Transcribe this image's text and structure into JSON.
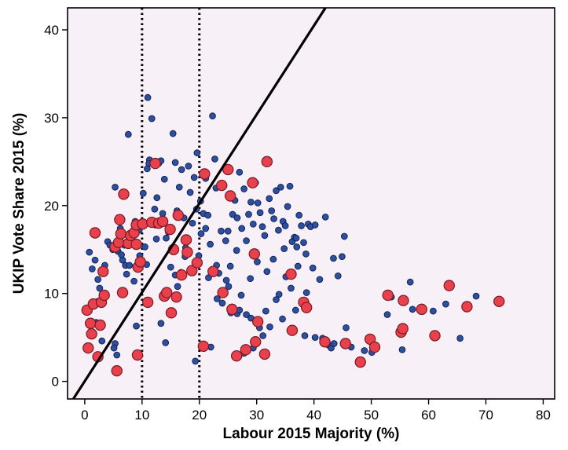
{
  "chart_data": {
    "type": "scatter",
    "xlabel": "Labour 2015 Majority (%)",
    "ylabel": "UKIP Vote Share 2015 (%)",
    "xlim": [
      -3,
      82
    ],
    "ylim": [
      -2,
      42.5
    ],
    "xticks": [
      "0",
      "10",
      "20",
      "30",
      "40",
      "50",
      "60",
      "70",
      "80"
    ],
    "yticks": [
      "0",
      "10",
      "20",
      "30",
      "40"
    ],
    "grid": false,
    "background_color": "#f7f0f7",
    "vertical_reference_lines": [
      10,
      20
    ],
    "trend_line": {
      "x1": -2,
      "y1": -2,
      "x2": 42,
      "y2": 42.5
    },
    "series": [
      {
        "color": "#2e4ea0",
        "marker": "small-circle",
        "points": [
          [
            0.8,
            14.7
          ],
          [
            1.3,
            12.8
          ],
          [
            1.8,
            13.8
          ],
          [
            2.3,
            11.6
          ],
          [
            2.6,
            10.6
          ],
          [
            2.3,
            9.1
          ],
          [
            3.5,
            13.2
          ],
          [
            4.0,
            15.9
          ],
          [
            4.4,
            15.5
          ],
          [
            4.9,
            15.0
          ],
          [
            5.3,
            22.1
          ],
          [
            5.8,
            14.8
          ],
          [
            6.2,
            17.4
          ],
          [
            6.4,
            14.4
          ],
          [
            6.9,
            15.5
          ],
          [
            7.1,
            13.2
          ],
          [
            7.6,
            28.1
          ],
          [
            7.8,
            13.2
          ],
          [
            8.2,
            16.3
          ],
          [
            8.4,
            16.9
          ],
          [
            8.8,
            18.2
          ],
          [
            9.2,
            15.8
          ],
          [
            9.5,
            17.2
          ],
          [
            5.3,
            4.3
          ],
          [
            5.1,
            3.8
          ],
          [
            5.6,
            3.0
          ],
          [
            9.0,
            6.3
          ],
          [
            10.2,
            21.4
          ],
          [
            10.8,
            13.3
          ],
          [
            10.5,
            15.3
          ],
          [
            11.0,
            32.3
          ],
          [
            10.9,
            24.2
          ],
          [
            11.3,
            25.2
          ],
          [
            11.7,
            29.9
          ],
          [
            12.2,
            19.6
          ],
          [
            12.5,
            16.2
          ],
          [
            12.9,
            24.8
          ],
          [
            13.3,
            25.1
          ],
          [
            13.6,
            19.1
          ],
          [
            13.9,
            23.0
          ],
          [
            14.2,
            16.3
          ],
          [
            14.6,
            17.0
          ],
          [
            15.0,
            13.0
          ],
          [
            15.4,
            28.2
          ],
          [
            15.8,
            12.1
          ],
          [
            16.1,
            19.4
          ],
          [
            16.5,
            22.1
          ],
          [
            16.9,
            24.1
          ],
          [
            17.3,
            18.6
          ],
          [
            17.6,
            15.2
          ],
          [
            18.0,
            16.2
          ],
          [
            18.4,
            21.5
          ],
          [
            18.8,
            18.0
          ],
          [
            19.1,
            23.2
          ],
          [
            19.5,
            19.6
          ],
          [
            19.9,
            14.3
          ],
          [
            20.3,
            16.8
          ],
          [
            20.7,
            19.1
          ],
          [
            21.1,
            17.4
          ],
          [
            21.5,
            18.9
          ],
          [
            21.9,
            15.6
          ],
          [
            22.3,
            30.2
          ],
          [
            22.7,
            25.3
          ],
          [
            23.0,
            13.2
          ],
          [
            23.4,
            12.3
          ],
          [
            23.8,
            17.1
          ],
          [
            24.2,
            22.2
          ],
          [
            24.6,
            16.0
          ],
          [
            25.0,
            17.1
          ],
          [
            25.4,
            13.1
          ],
          [
            25.8,
            19.0
          ],
          [
            26.2,
            20.6
          ],
          [
            26.6,
            18.6
          ],
          [
            27.0,
            23.8
          ],
          [
            27.4,
            17.4
          ],
          [
            27.8,
            21.9
          ],
          [
            28.2,
            16.0
          ],
          [
            28.6,
            19.0
          ],
          [
            29.0,
            20.4
          ],
          [
            29.4,
            17.9
          ],
          [
            29.8,
            22.6
          ],
          [
            30.2,
            20.3
          ],
          [
            30.6,
            19.2
          ],
          [
            31.0,
            17.6
          ],
          [
            31.4,
            16.6
          ],
          [
            31.8,
            12.5
          ],
          [
            32.2,
            20.8
          ],
          [
            32.6,
            19.4
          ],
          [
            33.0,
            18.5
          ],
          [
            33.4,
            21.7
          ],
          [
            33.8,
            17.2
          ],
          [
            34.2,
            22.1
          ],
          [
            34.6,
            18.2
          ],
          [
            35.0,
            17.7
          ],
          [
            35.4,
            19.9
          ],
          [
            35.8,
            22.2
          ],
          [
            36.2,
            15.9
          ],
          [
            36.6,
            16.4
          ],
          [
            37.0,
            15.3
          ],
          [
            37.4,
            18.9
          ],
          [
            37.8,
            17.7
          ],
          [
            38.2,
            15.8
          ],
          [
            38.6,
            14.5
          ],
          [
            39.0,
            17.9
          ],
          [
            39.4,
            17.6
          ],
          [
            40.2,
            17.8
          ],
          [
            42.0,
            18.7
          ],
          [
            43.4,
            14.0
          ],
          [
            44.2,
            12.0
          ],
          [
            44.9,
            14.2
          ],
          [
            45.3,
            16.5
          ],
          [
            45.6,
            6.1
          ],
          [
            22.0,
            3.9
          ],
          [
            24.7,
            11.5
          ],
          [
            25.1,
            10.8
          ],
          [
            25.5,
            7.8
          ],
          [
            26.6,
            7.7
          ],
          [
            27.0,
            8.1
          ],
          [
            27.8,
            3.2
          ],
          [
            28.2,
            7.6
          ],
          [
            29.0,
            7.2
          ],
          [
            29.4,
            3.8
          ],
          [
            29.8,
            6.9
          ],
          [
            30.5,
            6.1
          ],
          [
            31.1,
            5.2
          ],
          [
            31.6,
            8.0
          ],
          [
            32.3,
            6.2
          ],
          [
            33.4,
            9.3
          ],
          [
            33.9,
            9.9
          ],
          [
            34.5,
            7.1
          ],
          [
            36.8,
            8.1
          ],
          [
            38.4,
            5.2
          ],
          [
            38.7,
            10.1
          ],
          [
            40.2,
            5.0
          ],
          [
            41.5,
            4.9
          ],
          [
            42.6,
            4.1
          ],
          [
            43.0,
            3.8
          ],
          [
            43.5,
            4.3
          ],
          [
            46.5,
            3.9
          ],
          [
            48.8,
            3.5
          ],
          [
            50.1,
            3.3
          ],
          [
            52.8,
            7.6
          ],
          [
            53.5,
            9.6
          ],
          [
            55.4,
            3.6
          ],
          [
            56.8,
            11.3
          ],
          [
            57.2,
            8.2
          ],
          [
            60.8,
            8.0
          ],
          [
            63.0,
            8.8
          ],
          [
            65.5,
            4.9
          ],
          [
            68.3,
            9.7
          ],
          [
            14.1,
            4.4
          ],
          [
            13.3,
            6.6
          ],
          [
            16.2,
            10.8
          ],
          [
            19.3,
            2.3
          ],
          [
            14.7,
            17.1
          ],
          [
            16.8,
            12.4
          ],
          [
            17.5,
            14.2
          ],
          [
            12.3,
            17.8
          ],
          [
            12.6,
            20.9
          ],
          [
            11.2,
            24.8
          ],
          [
            10.0,
            18.1
          ],
          [
            9.6,
            14.3
          ],
          [
            8.6,
            11.4
          ],
          [
            7.3,
            12.2
          ],
          [
            6.6,
            13.8
          ],
          [
            1.4,
            5.6
          ],
          [
            3.0,
            4.6
          ],
          [
            2.0,
            6.7
          ],
          [
            21.6,
            11.8
          ],
          [
            23.1,
            9.4
          ],
          [
            24.0,
            8.9
          ],
          [
            26.5,
            14.9
          ],
          [
            27.3,
            9.8
          ],
          [
            28.9,
            11.7
          ],
          [
            30.1,
            13.6
          ],
          [
            32.9,
            13.9
          ],
          [
            35.1,
            11.9
          ],
          [
            36.0,
            10.6
          ],
          [
            37.2,
            13.1
          ],
          [
            39.8,
            12.9
          ],
          [
            41.0,
            11.6
          ],
          [
            34.8,
            15.1
          ],
          [
            36.9,
            16.3
          ],
          [
            20.2,
            20.5
          ],
          [
            21.1,
            23.1
          ],
          [
            22.9,
            22.0
          ],
          [
            18.1,
            24.5
          ],
          [
            19.6,
            26.0
          ],
          [
            15.8,
            24.9
          ]
        ]
      },
      {
        "color": "#e8404c",
        "marker": "large-circle",
        "points": [
          [
            0.4,
            8.1
          ],
          [
            0.6,
            3.8
          ],
          [
            1.0,
            6.6
          ],
          [
            1.2,
            5.4
          ],
          [
            1.5,
            8.8
          ],
          [
            1.8,
            16.9
          ],
          [
            2.3,
            2.8
          ],
          [
            2.7,
            6.4
          ],
          [
            2.9,
            9.0
          ],
          [
            3.2,
            12.5
          ],
          [
            3.4,
            9.8
          ],
          [
            5.3,
            15.3
          ],
          [
            5.6,
            1.2
          ],
          [
            5.9,
            15.8
          ],
          [
            6.1,
            18.4
          ],
          [
            6.3,
            16.8
          ],
          [
            6.6,
            10.1
          ],
          [
            6.8,
            21.3
          ],
          [
            7.6,
            15.7
          ],
          [
            8.0,
            16.6
          ],
          [
            8.6,
            16.9
          ],
          [
            9.0,
            15.6
          ],
          [
            9.3,
            13.0
          ],
          [
            9.7,
            13.6
          ],
          [
            9.2,
            3.0
          ],
          [
            9.0,
            17.8
          ],
          [
            10.1,
            17.9
          ],
          [
            11.0,
            9.0
          ],
          [
            11.7,
            18.1
          ],
          [
            12.3,
            24.8
          ],
          [
            12.9,
            18.0
          ],
          [
            13.6,
            18.2
          ],
          [
            13.9,
            9.7
          ],
          [
            14.3,
            10.1
          ],
          [
            14.9,
            17.3
          ],
          [
            15.1,
            7.8
          ],
          [
            15.5,
            15.0
          ],
          [
            16.0,
            9.6
          ],
          [
            16.3,
            18.9
          ],
          [
            16.9,
            12.1
          ],
          [
            17.7,
            16.1
          ],
          [
            17.9,
            14.7
          ],
          [
            18.7,
            12.6
          ],
          [
            19.6,
            13.5
          ],
          [
            20.7,
            4.0
          ],
          [
            20.9,
            23.6
          ],
          [
            22.4,
            12.5
          ],
          [
            23.9,
            22.3
          ],
          [
            24.1,
            10.1
          ],
          [
            25.0,
            24.1
          ],
          [
            25.4,
            21.1
          ],
          [
            25.7,
            8.2
          ],
          [
            26.5,
            2.9
          ],
          [
            28.1,
            3.6
          ],
          [
            29.3,
            22.6
          ],
          [
            29.6,
            14.5
          ],
          [
            29.8,
            4.5
          ],
          [
            30.2,
            6.8
          ],
          [
            31.4,
            3.1
          ],
          [
            31.8,
            25.0
          ],
          [
            36.0,
            12.2
          ],
          [
            36.2,
            5.8
          ],
          [
            38.2,
            9.0
          ],
          [
            38.7,
            8.4
          ],
          [
            41.9,
            4.5
          ],
          [
            45.5,
            4.3
          ],
          [
            48.1,
            2.2
          ],
          [
            49.8,
            4.8
          ],
          [
            50.6,
            3.9
          ],
          [
            52.9,
            9.8
          ],
          [
            55.2,
            5.6
          ],
          [
            55.5,
            6.0
          ],
          [
            55.6,
            9.2
          ],
          [
            58.8,
            8.2
          ],
          [
            61.1,
            5.2
          ],
          [
            63.6,
            10.9
          ],
          [
            66.7,
            8.5
          ],
          [
            72.3,
            9.1
          ]
        ]
      }
    ]
  }
}
